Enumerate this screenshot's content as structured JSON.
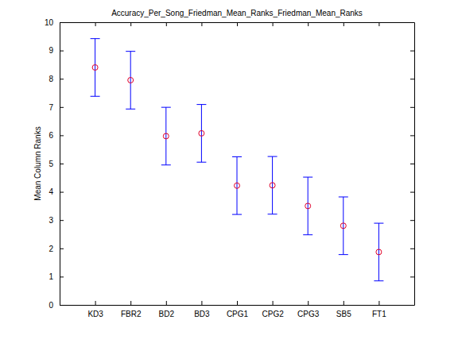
{
  "chart_data": {
    "type": "errorbar",
    "title": "Accuracy_Per_Song_Friedman_Mean_Ranks_Friedman_Mean_Ranks",
    "y_label": "Mean Column Ranks",
    "categories": [
      "KD3",
      "FBR2",
      "BD2",
      "BD3",
      "CPG1",
      "CPG2",
      "CPG3",
      "SB5",
      "FT1"
    ],
    "values": [
      8.4,
      7.95,
      5.97,
      6.07,
      4.22,
      4.23,
      3.5,
      2.8,
      1.87
    ],
    "errors": [
      1.02,
      1.02,
      1.02,
      1.02,
      1.02,
      1.02,
      1.02,
      1.02,
      1.02
    ],
    "color": "#0000ff",
    "marker": "circle",
    "ylim": [
      0,
      10
    ],
    "yticks": [
      0,
      1,
      2,
      3,
      4,
      5,
      6,
      7,
      8,
      9,
      10
    ]
  }
}
